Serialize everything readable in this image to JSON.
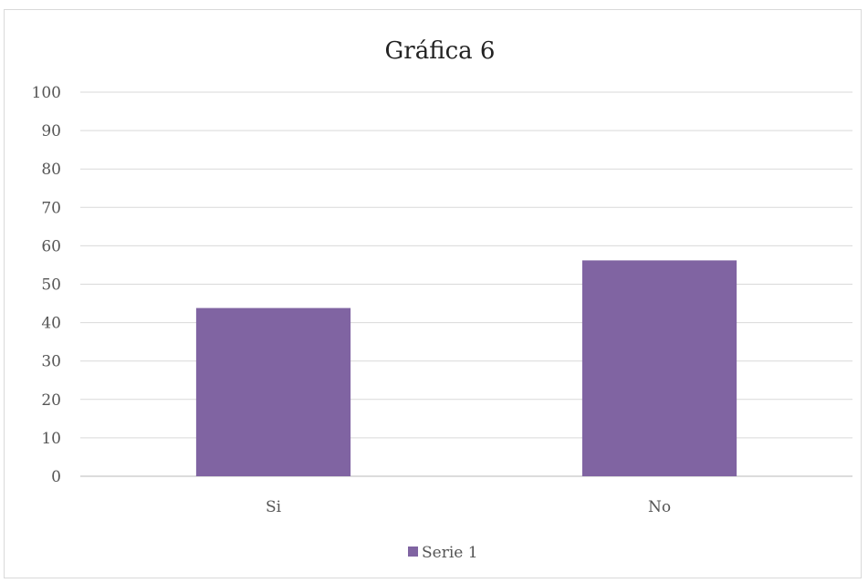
{
  "chart_data": {
    "type": "bar",
    "title": "Gráfica 6",
    "xlabel": "",
    "ylabel": "",
    "categories": [
      "Si",
      "No"
    ],
    "series": [
      {
        "name": "Serie 1",
        "values": [
          43.8,
          56.2
        ],
        "color": "#8064a2"
      }
    ],
    "ylim": [
      0,
      100
    ],
    "yticks": [
      0,
      10,
      20,
      30,
      40,
      50,
      60,
      70,
      80,
      90,
      100
    ],
    "grid": true,
    "legend_position": "bottom"
  }
}
